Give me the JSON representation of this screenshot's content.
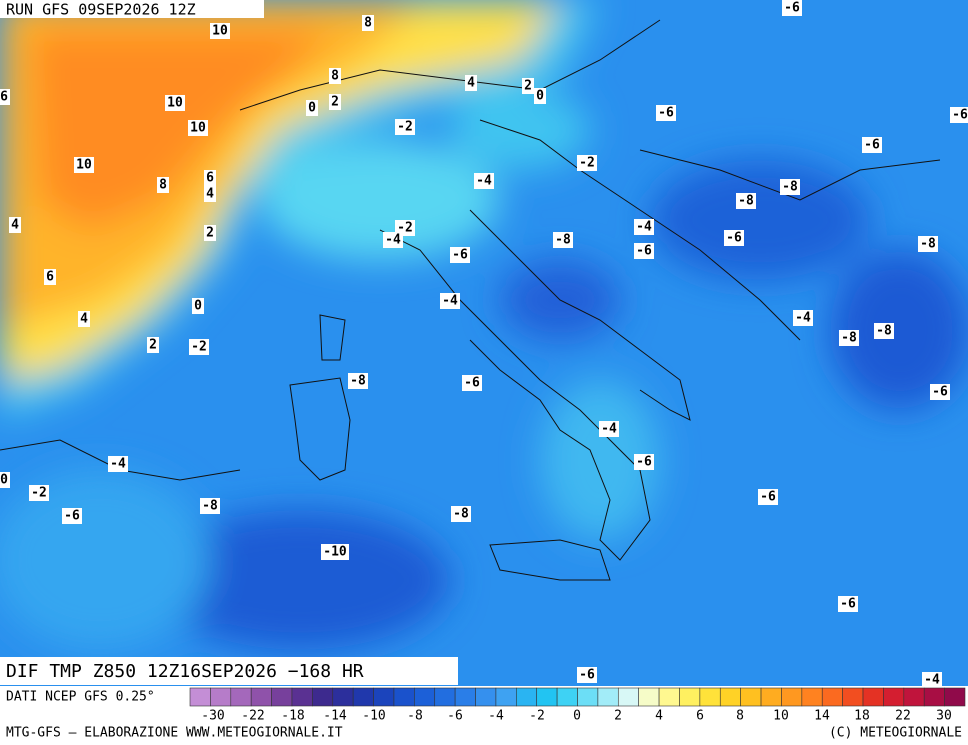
{
  "header": {
    "run": "RUN GFS 09SEP2026 12Z"
  },
  "map": {
    "contour_labels": [
      8,
      10,
      -6,
      6,
      10,
      10,
      8,
      0,
      2,
      4,
      2,
      0,
      -2,
      -6,
      -6,
      -6,
      -2,
      10,
      8,
      6,
      4,
      -4,
      -8,
      -8,
      4,
      2,
      -2,
      -4,
      -4,
      -8,
      -6,
      -8,
      -6,
      -6,
      6,
      0,
      -4,
      4,
      -4,
      -8,
      -8,
      2,
      -2,
      -8,
      -6,
      -6,
      -4,
      -4,
      -6,
      0,
      -2,
      -6,
      -8,
      -6,
      -8,
      -10,
      -6,
      -6,
      -4
    ]
  },
  "footer": {
    "title": "DIF TMP Z850 12Z16SEP2026 −168 HR",
    "source": "DATI NCEP GFS 0.25°",
    "credit_left": "MTG-GFS — ELABORAZIONE WWW.METEOGIORNALE.IT",
    "credit_right": "(C) METEOGIORNALE"
  },
  "colorbar": {
    "ticks": [
      -30,
      -22,
      -18,
      -14,
      -10,
      -8,
      -6,
      -4,
      -2,
      0,
      2,
      4,
      6,
      8,
      10,
      14,
      18,
      22,
      30
    ],
    "colors": [
      "#c48ed6",
      "#b67cc9",
      "#a468bb",
      "#8f52aa",
      "#77409c",
      "#5a3192",
      "#3d2a8e",
      "#2c2f9c",
      "#2038ac",
      "#1b44bc",
      "#1a52cc",
      "#1c60d8",
      "#226ee0",
      "#2a7ee8",
      "#3590ee",
      "#3ea2f2",
      "#2ab4f2",
      "#22c4f2",
      "#3ed2f4",
      "#6cdef6",
      "#a2ecf8",
      "#d8f8f6",
      "#f6fcc8",
      "#fff890",
      "#fff060",
      "#ffe23a",
      "#ffd226",
      "#ffc020",
      "#ffac20",
      "#ff9820",
      "#ff8220",
      "#fb6a20",
      "#f24e20",
      "#e43224",
      "#d41e30",
      "#c0143c",
      "#a80e44",
      "#900a4a"
    ]
  }
}
